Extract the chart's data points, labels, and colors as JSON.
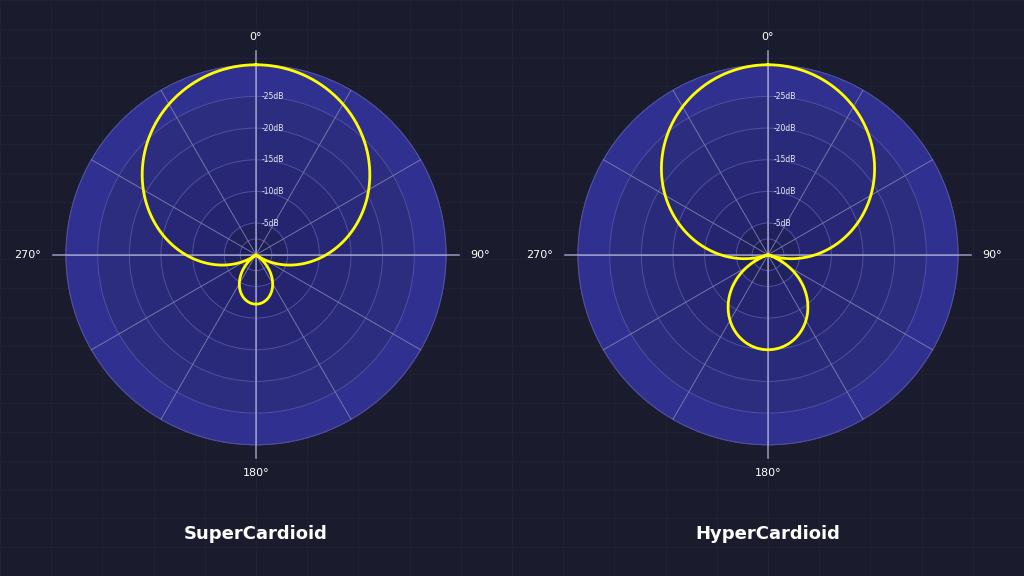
{
  "background_color": "#1b1b2e",
  "grid_line_color": "#252538",
  "circle_fill_outer": "#2e2e6a",
  "circle_fill_steps": [
    "#2e2e6a",
    "#2c2c65",
    "#2a2a60",
    "#28285a",
    "#262655",
    "#222250"
  ],
  "circle_edge_color": "#5555a0",
  "spoke_color": "#7070aa",
  "axis_color": "#9090c0",
  "label_color": "#ffffff",
  "pattern_color": "#ffff00",
  "titles": [
    "SuperCardioid",
    "HyperCardioid"
  ],
  "db_labels": [
    "-5dB",
    "-10dB",
    "-15dB",
    "-20dB",
    "-25dB"
  ],
  "n_rings": 6,
  "supercardioid_coeff": 0.37,
  "hypercardioid_coeff": 0.25,
  "pattern_lw": 2.0,
  "spoke_angles_deg": [
    0,
    30,
    60,
    90,
    120,
    150,
    180,
    210,
    240,
    270,
    300,
    330
  ],
  "label_angles_deg": [
    0,
    90,
    180,
    270
  ],
  "label_texts": [
    "0°",
    "90°",
    "180°",
    "270°"
  ]
}
